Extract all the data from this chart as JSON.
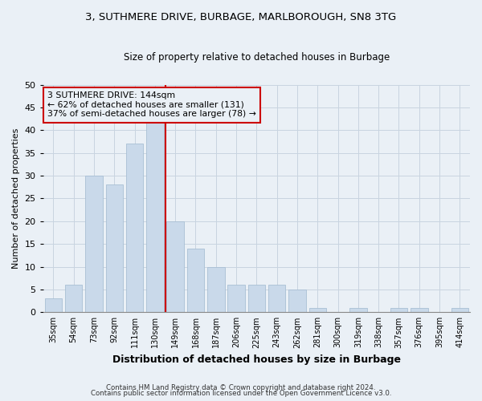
{
  "title1": "3, SUTHMERE DRIVE, BURBAGE, MARLBOROUGH, SN8 3TG",
  "title2": "Size of property relative to detached houses in Burbage",
  "xlabel": "Distribution of detached houses by size in Burbage",
  "ylabel": "Number of detached properties",
  "categories": [
    "35sqm",
    "54sqm",
    "73sqm",
    "92sqm",
    "111sqm",
    "130sqm",
    "149sqm",
    "168sqm",
    "187sqm",
    "206sqm",
    "225sqm",
    "243sqm",
    "262sqm",
    "281sqm",
    "300sqm",
    "319sqm",
    "338sqm",
    "357sqm",
    "376sqm",
    "395sqm",
    "414sqm"
  ],
  "values": [
    3,
    6,
    30,
    28,
    37,
    42,
    20,
    14,
    10,
    6,
    6,
    6,
    5,
    1,
    0,
    1,
    0,
    1,
    1,
    0,
    1
  ],
  "bar_color": "#c9d9ea",
  "bar_edge_color": "#a8bfd4",
  "grid_color": "#c8d4e0",
  "bg_color": "#eaf0f6",
  "plot_bg_color": "#eaf0f6",
  "vline_color": "#cc0000",
  "vline_x_index": 5,
  "annotation_text": "3 SUTHMERE DRIVE: 144sqm\n← 62% of detached houses are smaller (131)\n37% of semi-detached houses are larger (78) →",
  "annotation_box_edge_color": "#cc0000",
  "footer1": "Contains HM Land Registry data © Crown copyright and database right 2024.",
  "footer2": "Contains public sector information licensed under the Open Government Licence v3.0.",
  "ylim": [
    0,
    50
  ],
  "yticks": [
    0,
    5,
    10,
    15,
    20,
    25,
    30,
    35,
    40,
    45,
    50
  ]
}
